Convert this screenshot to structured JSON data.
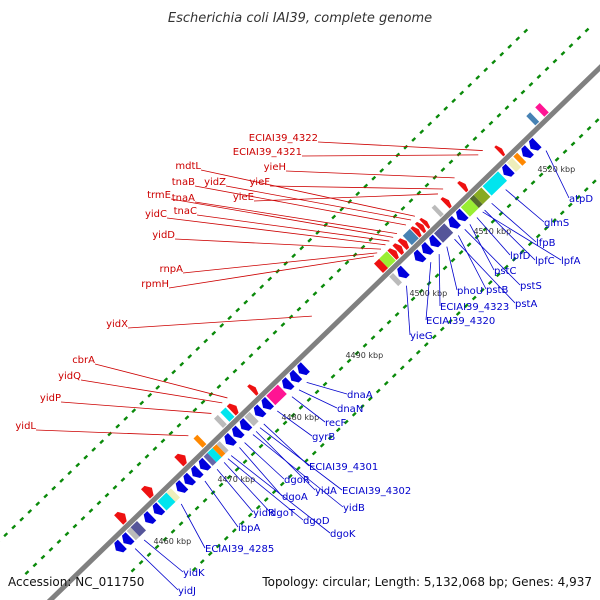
{
  "header": {
    "title": "Escherichia coli IAI39, complete genome"
  },
  "footer": {
    "accession": "Accession: NC_011750",
    "summary": "Topology: circular; Length: 5,132,068 bp; Genes: 4,937"
  },
  "colors": {
    "forward_label": "#cc0000",
    "reverse_label": "#0000cc",
    "backbone": "#808080",
    "tick": "#0a8a0a"
  },
  "ticks": [
    {
      "label": "4460 kbp",
      "pos": 4460
    },
    {
      "label": "4470 kbp",
      "pos": 4470
    },
    {
      "label": "4480 kbp",
      "pos": 4480
    },
    {
      "label": "4490 kbp",
      "pos": 4490
    },
    {
      "label": "4500 kbp",
      "pos": 4500
    },
    {
      "label": "4510 kbp",
      "pos": 4510
    },
    {
      "label": "4520 kbp",
      "pos": 4520
    }
  ],
  "forward_labels": [
    {
      "text": "ECIAI39_4322",
      "target": 4517.2
    },
    {
      "text": "ECIAI39_4321",
      "target": 4516.5
    },
    {
      "text": "yieH",
      "target": 4512.8
    },
    {
      "text": "yieF",
      "target": 4511.0
    },
    {
      "text": "yieE",
      "target": 4510.2
    },
    {
      "text": "mdtL",
      "target": 4506.6
    },
    {
      "text": "yidZ",
      "target": 4506.0
    },
    {
      "text": "tnaB",
      "target": 4505.2
    },
    {
      "text": "tnaA",
      "target": 4503.8
    },
    {
      "text": "trmE",
      "target": 4503.2
    },
    {
      "text": "tnaC",
      "target": 4502.6
    },
    {
      "text": "yidC",
      "target": 4502.0
    },
    {
      "text": "yidD",
      "target": 4501.3
    },
    {
      "text": "rnpA",
      "target": 4500.7
    },
    {
      "text": "rpmH",
      "target": 4500.2
    },
    {
      "text": "yidX",
      "target": 4490.5
    },
    {
      "text": "cbrA",
      "target": 4477.3
    },
    {
      "text": "yidQ",
      "target": 4476.5
    },
    {
      "text": "yidP",
      "target": 4474.8
    },
    {
      "text": "yidL",
      "target": 4471.2
    }
  ],
  "reverse_labels": [
    {
      "text": "atpD",
      "target": 4522.3
    },
    {
      "text": "glmS",
      "target": 4516.0
    },
    {
      "text": "lfpB",
      "target": 4513.8
    },
    {
      "text": "lpfA",
      "target": 4512.4
    },
    {
      "text": "lpfC",
      "target": 4512.7
    },
    {
      "text": "lpfD",
      "target": 4511.5
    },
    {
      "text": "pstC",
      "target": 4510.4
    },
    {
      "text": "pstS",
      "target": 4509.6
    },
    {
      "text": "pstB",
      "target": 4508.6
    },
    {
      "text": "pstA",
      "target": 4508.0
    },
    {
      "text": "phoU",
      "target": 4506.8
    },
    {
      "text": "ECIAI39_4323",
      "target": 4505.6
    },
    {
      "text": "ECIAI39_4320",
      "target": 4504.3
    },
    {
      "text": "yieG",
      "target": 4500.5
    },
    {
      "text": "dnaA",
      "target": 4484.9
    },
    {
      "text": "dnaN",
      "target": 4483.7
    },
    {
      "text": "recF",
      "target": 4482.6
    },
    {
      "text": "gyrB",
      "target": 4480.3
    },
    {
      "text": "ECIAI39_4301",
      "target": 4478.2
    },
    {
      "text": "yidA",
      "target": 4477.0
    },
    {
      "text": "ECIAI39_4302",
      "target": 4477.6
    },
    {
      "text": "yidB",
      "target": 4476.5
    },
    {
      "text": "dgoR",
      "target": 4475.2
    },
    {
      "text": "dgoA",
      "target": 4474.4
    },
    {
      "text": "dgoK",
      "target": 4473.1
    },
    {
      "text": "dgoD",
      "target": 4472.6
    },
    {
      "text": "dgoT",
      "target": 4472.0
    },
    {
      "text": "yidR",
      "target": 4470.9
    },
    {
      "text": "ibpA",
      "target": 4469.0
    },
    {
      "text": "ECIAI39_4285",
      "target": 4465.3
    },
    {
      "text": "yidK",
      "target": 4459.5
    },
    {
      "text": "yidJ",
      "target": 4458.1
    }
  ],
  "features": [
    {
      "strand": 1,
      "start": 4459.0,
      "end": 4460.0,
      "color": "#ee1111",
      "arrow": true
    },
    {
      "strand": 1,
      "start": 4463.2,
      "end": 4464.2,
      "color": "#ee1111",
      "arrow": true
    },
    {
      "strand": 1,
      "start": 4468.4,
      "end": 4469.4,
      "color": "#ee1111",
      "arrow": true
    },
    {
      "strand": 1,
      "start": 4471.4,
      "end": 4472.0,
      "color": "#ff8800",
      "arrow": false
    },
    {
      "strand": 1,
      "start": 4474.6,
      "end": 4475.2,
      "color": "#bbbbbb",
      "arrow": false
    },
    {
      "strand": 1,
      "start": 4475.6,
      "end": 4476.4,
      "color": "#00e5ee",
      "arrow": false
    },
    {
      "strand": 1,
      "start": 4476.6,
      "end": 4477.4,
      "color": "#ee1111",
      "arrow": true
    },
    {
      "strand": 1,
      "start": 4479.8,
      "end": 4480.4,
      "color": "#ee1111",
      "arrow": true
    },
    {
      "strand": 1,
      "start": 4499.6,
      "end": 4500.4,
      "color": "#ee1111",
      "arrow": false
    },
    {
      "strand": 1,
      "start": 4500.4,
      "end": 4501.6,
      "color": "#99ee33",
      "arrow": false
    },
    {
      "strand": 1,
      "start": 4501.7,
      "end": 4502.4,
      "color": "#ee1111",
      "arrow": true
    },
    {
      "strand": 1,
      "start": 4502.5,
      "end": 4503.2,
      "color": "#ee1111",
      "arrow": true
    },
    {
      "strand": 1,
      "start": 4503.3,
      "end": 4504.0,
      "color": "#ee1111",
      "arrow": true
    },
    {
      "strand": 1,
      "start": 4504.1,
      "end": 4505.2,
      "color": "#4682b4",
      "arrow": false
    },
    {
      "strand": 1,
      "start": 4505.3,
      "end": 4505.9,
      "color": "#ee1111",
      "arrow": true
    },
    {
      "strand": 1,
      "start": 4506.0,
      "end": 4506.6,
      "color": "#ee1111",
      "arrow": true
    },
    {
      "strand": 1,
      "start": 4506.7,
      "end": 4507.2,
      "color": "#ee1111",
      "arrow": true
    },
    {
      "strand": 1,
      "start": 4508.6,
      "end": 4509.1,
      "color": "#bbbbbb",
      "arrow": false
    },
    {
      "strand": 1,
      "start": 4510.0,
      "end": 4510.6,
      "color": "#ee1111",
      "arrow": true
    },
    {
      "strand": 1,
      "start": 4512.6,
      "end": 4513.2,
      "color": "#ee1111",
      "arrow": true
    },
    {
      "strand": 1,
      "start": 4518.4,
      "end": 4518.9,
      "color": "#ee1111",
      "arrow": true
    },
    {
      "strand": 1,
      "start": 4523.4,
      "end": 4524.0,
      "color": "#4682b4",
      "arrow": false
    },
    {
      "strand": 1,
      "start": 4524.8,
      "end": 4525.5,
      "color": "#ff1493",
      "arrow": false
    },
    {
      "strand": -1,
      "start": 4456.4,
      "end": 4457.4,
      "color": "#0000dd",
      "arrow": true
    },
    {
      "strand": -1,
      "start": 4457.6,
      "end": 4458.6,
      "color": "#0000dd",
      "arrow": true
    },
    {
      "strand": -1,
      "start": 4458.8,
      "end": 4459.4,
      "color": "#bbbbbb",
      "arrow": false
    },
    {
      "strand": -1,
      "start": 4459.4,
      "end": 4460.4,
      "color": "#555599",
      "arrow": false
    },
    {
      "strand": -1,
      "start": 4461.0,
      "end": 4462.0,
      "color": "#0000dd",
      "arrow": true
    },
    {
      "strand": -1,
      "start": 4462.4,
      "end": 4463.4,
      "color": "#0000dd",
      "arrow": true
    },
    {
      "strand": -1,
      "start": 4463.6,
      "end": 4465.0,
      "color": "#00e5ee",
      "arrow": false
    },
    {
      "strand": -1,
      "start": 4465.0,
      "end": 4465.7,
      "color": "#eeeebb",
      "arrow": false
    },
    {
      "strand": -1,
      "start": 4466.0,
      "end": 4467.0,
      "color": "#0000dd",
      "arrow": true
    },
    {
      "strand": -1,
      "start": 4467.2,
      "end": 4468.2,
      "color": "#0000dd",
      "arrow": true
    },
    {
      "strand": -1,
      "start": 4468.4,
      "end": 4469.4,
      "color": "#0000dd",
      "arrow": true
    },
    {
      "strand": -1,
      "start": 4469.6,
      "end": 4470.6,
      "color": "#0000dd",
      "arrow": true
    },
    {
      "strand": -1,
      "start": 4470.8,
      "end": 4471.4,
      "color": "#6666aa",
      "arrow": false
    },
    {
      "strand": -1,
      "start": 4471.4,
      "end": 4472.2,
      "color": "#00e5ee",
      "arrow": false
    },
    {
      "strand": -1,
      "start": 4472.2,
      "end": 4472.8,
      "color": "#ff8800",
      "arrow": false
    },
    {
      "strand": -1,
      "start": 4472.8,
      "end": 4473.3,
      "color": "#bbbbbb",
      "arrow": false
    },
    {
      "strand": -1,
      "start": 4473.6,
      "end": 4474.6,
      "color": "#0000dd",
      "arrow": true
    },
    {
      "strand": -1,
      "start": 4474.8,
      "end": 4475.8,
      "color": "#0000dd",
      "arrow": true
    },
    {
      "strand": -1,
      "start": 4476.0,
      "end": 4477.0,
      "color": "#0000dd",
      "arrow": true
    },
    {
      "strand": -1,
      "start": 4477.2,
      "end": 4478.0,
      "color": "#bbbbbb",
      "arrow": false
    },
    {
      "strand": -1,
      "start": 4478.2,
      "end": 4479.2,
      "color": "#0000dd",
      "arrow": true
    },
    {
      "strand": -1,
      "start": 4479.4,
      "end": 4480.4,
      "color": "#0000dd",
      "arrow": true
    },
    {
      "strand": -1,
      "start": 4480.6,
      "end": 4482.4,
      "color": "#ff1493",
      "arrow": false
    },
    {
      "strand": -1,
      "start": 4482.6,
      "end": 4483.6,
      "color": "#0000dd",
      "arrow": true
    },
    {
      "strand": -1,
      "start": 4483.8,
      "end": 4484.8,
      "color": "#0000dd",
      "arrow": true
    },
    {
      "strand": -1,
      "start": 4485.0,
      "end": 4486.0,
      "color": "#0000dd",
      "arrow": true
    },
    {
      "strand": -1,
      "start": 4499.8,
      "end": 4500.4,
      "color": "#bbbbbb",
      "arrow": false
    },
    {
      "strand": -1,
      "start": 4500.6,
      "end": 4501.6,
      "color": "#0000dd",
      "arrow": true
    },
    {
      "strand": -1,
      "start": 4503.2,
      "end": 4504.2,
      "color": "#0000dd",
      "arrow": true
    },
    {
      "strand": -1,
      "start": 4504.4,
      "end": 4505.4,
      "color": "#0000dd",
      "arrow": true
    },
    {
      "strand": -1,
      "start": 4505.6,
      "end": 4506.6,
      "color": "#0000dd",
      "arrow": true
    },
    {
      "strand": -1,
      "start": 4506.8,
      "end": 4508.4,
      "color": "#555599",
      "arrow": false
    },
    {
      "strand": -1,
      "start": 4508.6,
      "end": 4509.6,
      "color": "#0000dd",
      "arrow": true
    },
    {
      "strand": -1,
      "start": 4509.8,
      "end": 4510.8,
      "color": "#0000dd",
      "arrow": true
    },
    {
      "strand": -1,
      "start": 4511.0,
      "end": 4512.4,
      "color": "#99ee33",
      "arrow": false
    },
    {
      "strand": -1,
      "start": 4512.4,
      "end": 4513.0,
      "color": "#556b2f",
      "arrow": false
    },
    {
      "strand": -1,
      "start": 4513.0,
      "end": 4514.2,
      "color": "#88aa22",
      "arrow": false
    },
    {
      "strand": -1,
      "start": 4514.4,
      "end": 4516.8,
      "color": "#00e5ee",
      "arrow": false
    },
    {
      "strand": -1,
      "start": 4517.0,
      "end": 4518.0,
      "color": "#0000dd",
      "arrow": true
    },
    {
      "strand": -1,
      "start": 4518.2,
      "end": 4519.0,
      "color": "#eeeebb",
      "arrow": false
    },
    {
      "strand": -1,
      "start": 4519.2,
      "end": 4519.8,
      "color": "#ff8800",
      "arrow": false
    },
    {
      "strand": -1,
      "start": 4520.0,
      "end": 4521.0,
      "color": "#0000dd",
      "arrow": true
    },
    {
      "strand": -1,
      "start": 4521.2,
      "end": 4522.2,
      "color": "#0000dd",
      "arrow": true
    }
  ]
}
